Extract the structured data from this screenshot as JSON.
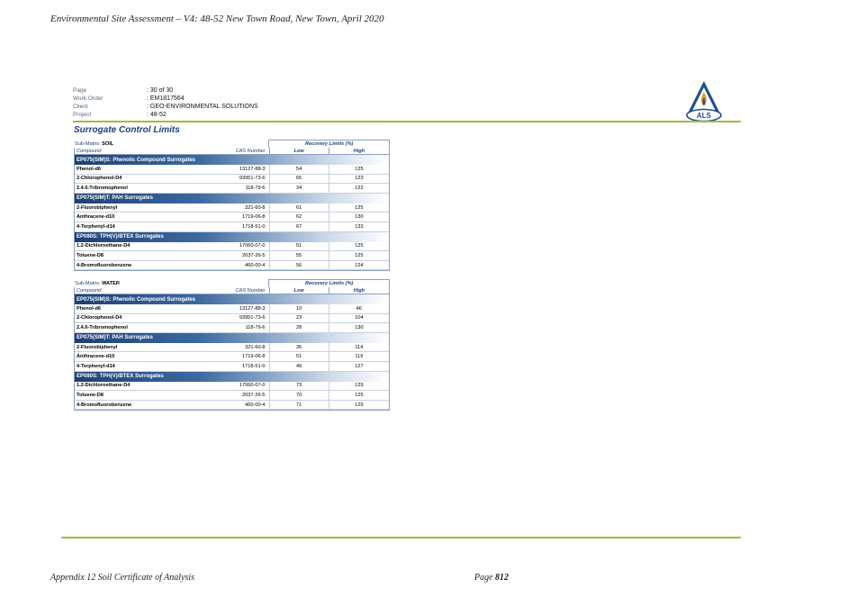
{
  "document": {
    "header": "Environmental Site Assessment – V4: 48-52 New Town Road, New Town, April 2020",
    "footer_left": "Appendix 12 Soil Certificate of Analysis",
    "footer_page_label": "Page",
    "footer_page_number": "812"
  },
  "report": {
    "meta": [
      {
        "key": "Page",
        "value": ": 30 of 30"
      },
      {
        "key": "Work Order",
        "value": ": EM1817564"
      },
      {
        "key": "Client",
        "value": ": GEO-ENVIRONMENTAL SOLUTIONS"
      },
      {
        "key": "Project",
        "value": ": 48-52"
      }
    ],
    "logo_text": "ALS",
    "title": "Surrogate Control Limits",
    "columns": {
      "compound": "Compound",
      "cas": "CAS Number",
      "recovery": "Recovery Limits (%)",
      "low": "Low",
      "high": "High"
    },
    "matrices": [
      {
        "label": "Sub-Matrix:",
        "name": "SOIL",
        "groups": [
          {
            "title": "EP075(SIM)S: Phenolic Compound Surrogates",
            "rows": [
              {
                "compound": "Phenol-d6",
                "cas": "13127-88-3",
                "low": "54",
                "high": "125"
              },
              {
                "compound": "2-Chlorophenol-D4",
                "cas": "93951-73-6",
                "low": "65",
                "high": "123"
              },
              {
                "compound": "2.4.6-Tribromophenol",
                "cas": "118-79-6",
                "low": "34",
                "high": "122"
              }
            ]
          },
          {
            "title": "EP075(SIM)T: PAH Surrogates",
            "rows": [
              {
                "compound": "2-Fluorobiphenyl",
                "cas": "321-60-8",
                "low": "61",
                "high": "125"
              },
              {
                "compound": "Anthracene-d10",
                "cas": "1719-06-8",
                "low": "62",
                "high": "130"
              },
              {
                "compound": "4-Terphenyl-d14",
                "cas": "1718-51-0",
                "low": "67",
                "high": "133"
              }
            ]
          },
          {
            "title": "EP080S: TPH(V)/BTEX Surrogates",
            "rows": [
              {
                "compound": "1.2-Dichloroethane-D4",
                "cas": "17060-07-0",
                "low": "51",
                "high": "125"
              },
              {
                "compound": "Toluene-D8",
                "cas": "2037-26-5",
                "low": "55",
                "high": "125"
              },
              {
                "compound": "4-Bromofluorobenzene",
                "cas": "460-00-4",
                "low": "56",
                "high": "124"
              }
            ]
          }
        ]
      },
      {
        "label": "Sub-Matrix:",
        "name": "WATER",
        "groups": [
          {
            "title": "EP075(SIM)S: Phenolic Compound Surrogates",
            "rows": [
              {
                "compound": "Phenol-d6",
                "cas": "13127-88-3",
                "low": "10",
                "high": "46"
              },
              {
                "compound": "2-Chlorophenol-D4",
                "cas": "93951-73-6",
                "low": "23",
                "high": "104"
              },
              {
                "compound": "2.4.6-Tribromophenol",
                "cas": "118-79-6",
                "low": "28",
                "high": "130"
              }
            ]
          },
          {
            "title": "EP075(SIM)T: PAH Surrogates",
            "rows": [
              {
                "compound": "2-Fluorobiphenyl",
                "cas": "321-60-8",
                "low": "36",
                "high": "114"
              },
              {
                "compound": "Anthracene-d10",
                "cas": "1719-06-8",
                "low": "51",
                "high": "119"
              },
              {
                "compound": "4-Terphenyl-d14",
                "cas": "1718-51-0",
                "low": "49",
                "high": "127"
              }
            ]
          },
          {
            "title": "EP080S: TPH(V)/BTEX Surrogates",
            "rows": [
              {
                "compound": "1.2-Dichloroethane-D4",
                "cas": "17060-07-0",
                "low": "73",
                "high": "129"
              },
              {
                "compound": "Toluene-D8",
                "cas": "2037-26-5",
                "low": "70",
                "high": "125"
              },
              {
                "compound": "4-Bromofluorobenzene",
                "cas": "460-00-4",
                "low": "71",
                "high": "129"
              }
            ]
          }
        ]
      }
    ]
  },
  "colors": {
    "accent_green": "#a8b93a",
    "brand_blue": "#1f3f7a"
  },
  "icons": {
    "logo": "als-flame-triangle-icon"
  }
}
